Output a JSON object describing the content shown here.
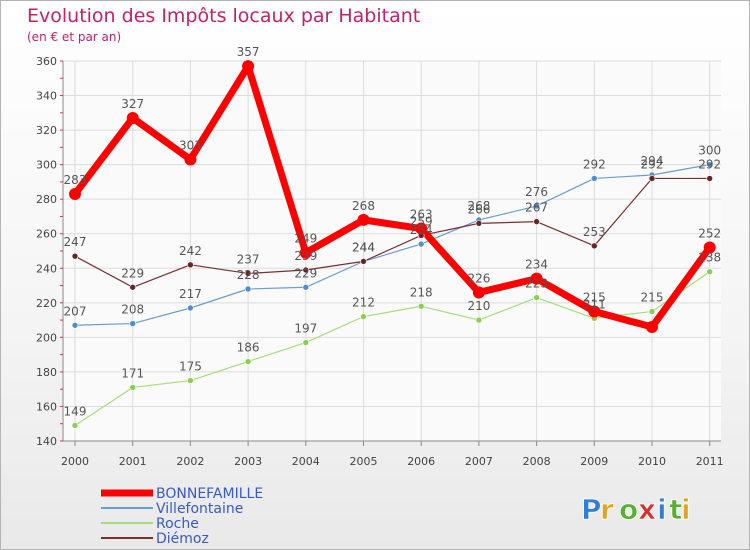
{
  "title": "Evolution des Impôts locaux par Habitant",
  "subtitle": "(en € et par an)",
  "logo": {
    "text": "Proxiti",
    "letter_colors": [
      "#2f7fd6",
      "#e3a21a",
      "#58b030",
      "#d8322e",
      "#2f7fd6",
      "#58b030",
      "#e3a21a"
    ]
  },
  "chart_data": {
    "type": "line",
    "title": "Evolution des Impôts locaux par Habitant",
    "subtitle": "(en € et par an)",
    "xlabel": "",
    "ylabel": "",
    "x": [
      "2000",
      "2001",
      "2002",
      "2003",
      "2004",
      "2005",
      "2006",
      "2007",
      "2008",
      "2009",
      "2010",
      "2011"
    ],
    "ylim": [
      140,
      360
    ],
    "yticks": [
      140,
      160,
      180,
      200,
      220,
      240,
      260,
      280,
      300,
      320,
      340,
      360
    ],
    "grid": true,
    "legend_position": "bottom-left",
    "series": [
      {
        "name": "BONNEFAMILLE",
        "values": [
          283,
          327,
          303,
          357,
          249,
          268,
          263,
          226,
          234,
          215,
          206,
          252
        ],
        "color": "#ff0000",
        "markerColor": "#ff0000",
        "width": 7,
        "radius": 6,
        "labels": [
          "283",
          "327",
          "303",
          "357",
          "249",
          "268",
          "263",
          "226",
          "234",
          "215",
          "",
          "252"
        ]
      },
      {
        "name": "Villefontaine",
        "values": [
          207,
          208,
          217,
          228,
          229,
          244,
          254,
          268,
          276,
          292,
          294,
          300
        ],
        "color": "#6a9cd0",
        "markerColor": "#4f8bd0",
        "width": 1.2,
        "radius": 3,
        "labels": [
          "207",
          "208",
          "217",
          "228",
          "229",
          "244",
          "254",
          "268",
          "276",
          "292",
          "294",
          "300"
        ]
      },
      {
        "name": "Roche",
        "values": [
          149,
          171,
          175,
          186,
          197,
          212,
          218,
          210,
          223,
          211,
          215,
          238
        ],
        "color": "#a6dd7a",
        "markerColor": "#8ad04e",
        "width": 1.2,
        "radius": 3,
        "labels": [
          "149",
          "171",
          "175",
          "186",
          "197",
          "212",
          "218",
          "210",
          "223",
          "211",
          "215",
          "238"
        ]
      },
      {
        "name": "Diémoz",
        "values": [
          247,
          229,
          242,
          237,
          239,
          244,
          259,
          266,
          267,
          253,
          292,
          292
        ],
        "color": "#7a2e2e",
        "markerColor": "#6b2424",
        "width": 1.2,
        "radius": 3,
        "labels": [
          "247",
          "229",
          "242",
          "237",
          "239",
          "244",
          "259",
          "266",
          "267",
          "253",
          "292",
          "292"
        ]
      }
    ]
  }
}
